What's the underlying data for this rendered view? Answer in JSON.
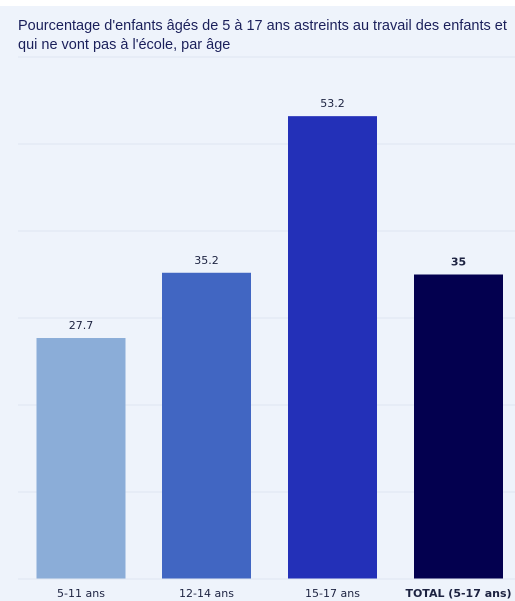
{
  "chart_data": {
    "type": "bar",
    "title": "Pourcentage d'enfants âgés de 5 à 17 ans astreints au travail des enfants et qui ne vont pas à l'école, par âge",
    "xlabel": "",
    "ylabel": "",
    "categories": [
      "5-11 ans",
      "12-14 ans",
      "15-17 ans",
      "TOTAL (5-17 ans)"
    ],
    "values": [
      27.7,
      35.2,
      53.2,
      35
    ],
    "value_labels": [
      "27.7",
      "35.2",
      "53.2",
      "35"
    ],
    "ylim": [
      0,
      60
    ],
    "grid": true,
    "legend": "none",
    "colors": [
      "#8badd8",
      "#4166c2",
      "#2330b8",
      "#03004f"
    ],
    "gridline_color": "#dfe6f2",
    "background_color": "#eef3fb"
  }
}
